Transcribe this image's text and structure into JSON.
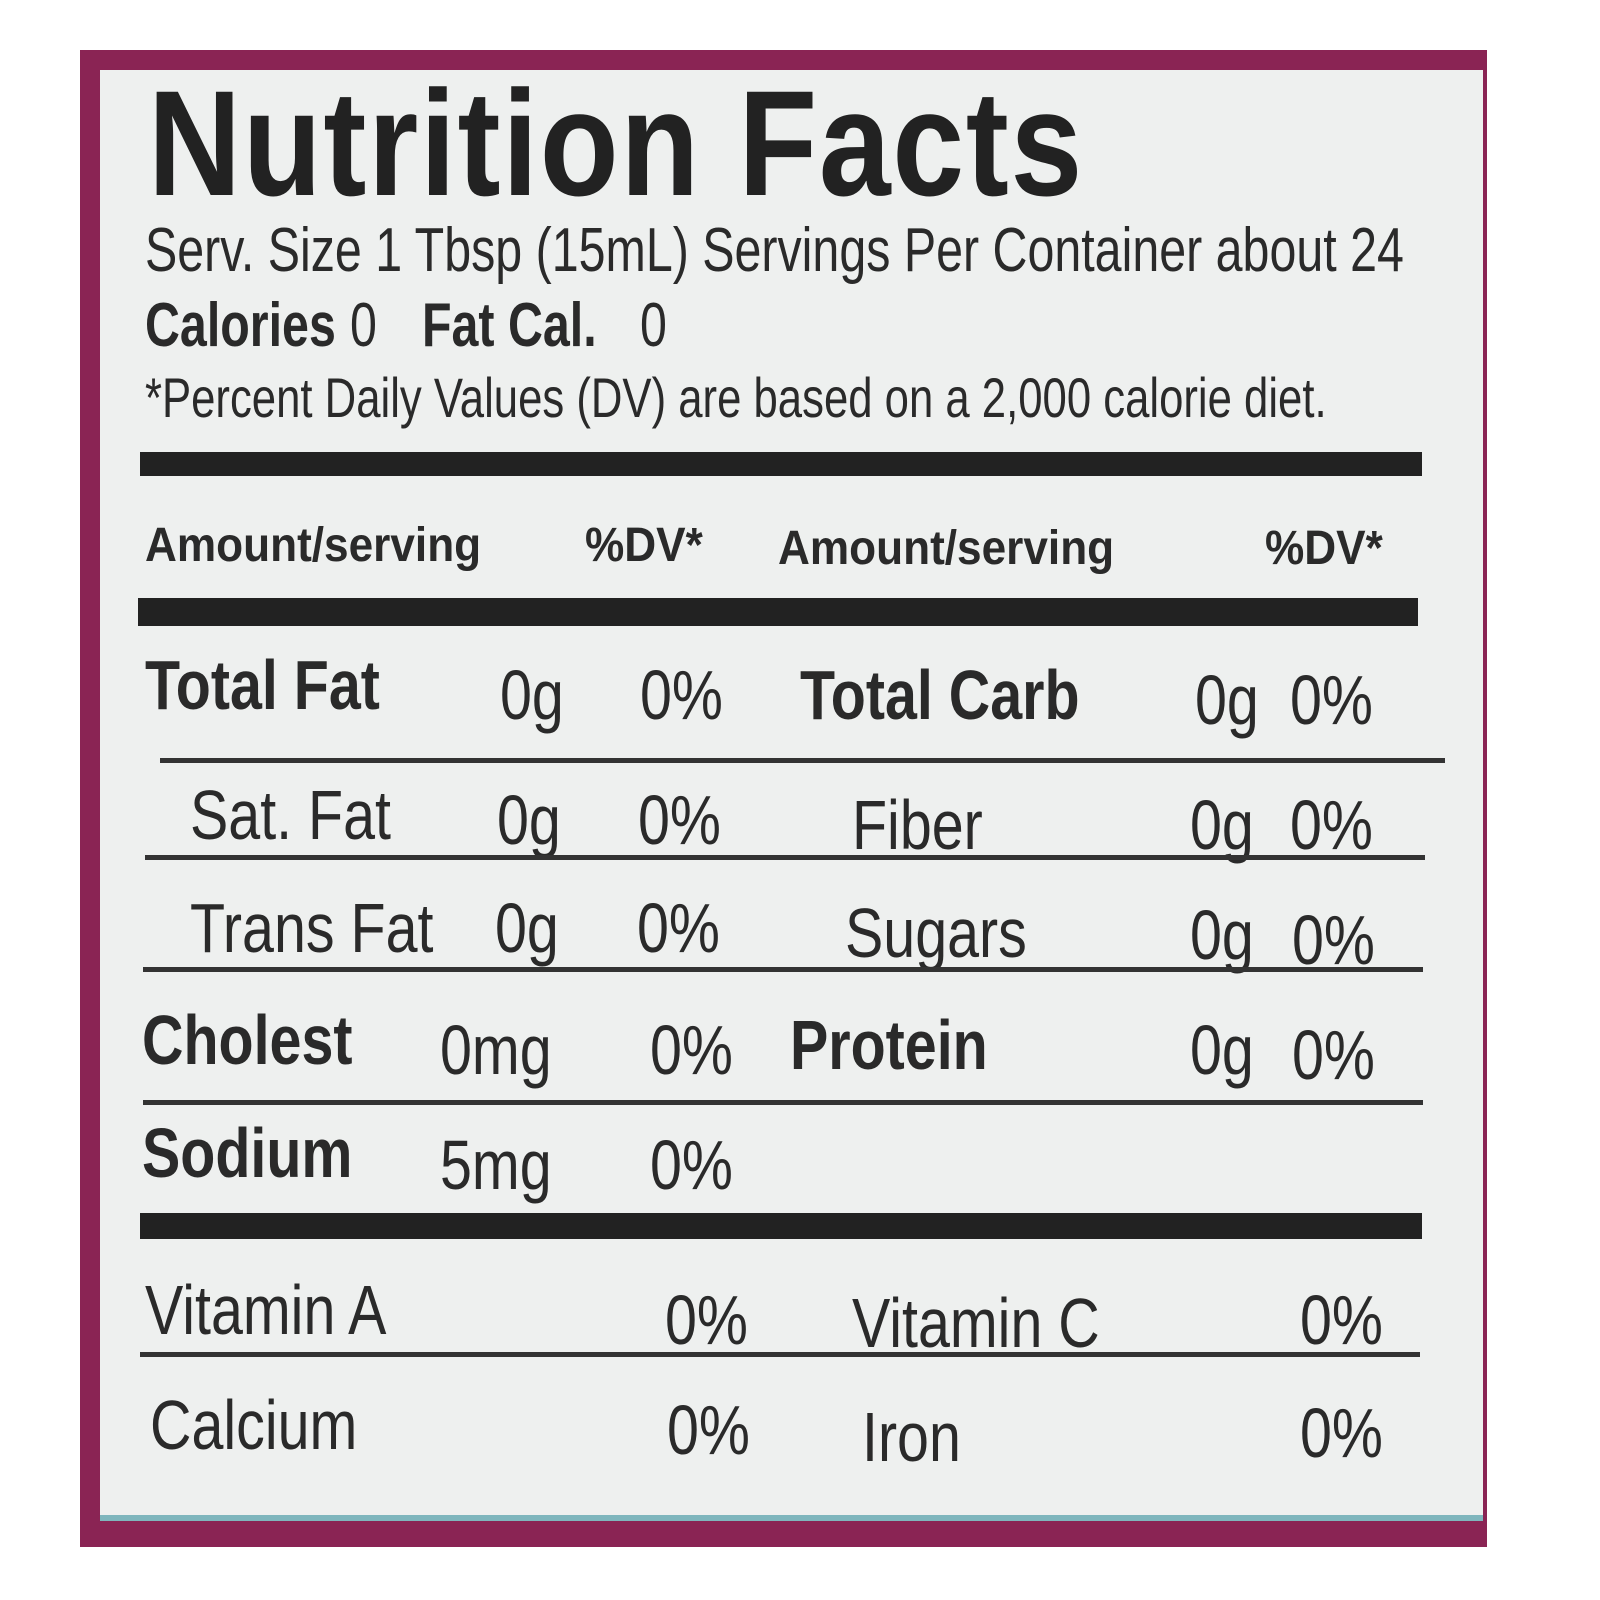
{
  "title": "Nutrition Facts",
  "serving_line": "Serv. Size 1 Tbsp (15mL)  Servings Per Container about 24",
  "calories": {
    "label": "Calories",
    "value": "0",
    "fat_label": "Fat Cal.",
    "fat_value": "0"
  },
  "dv_note": "*Percent Daily Values (DV) are based on a 2,000 calorie diet.",
  "headers": {
    "amount_left": "Amount/serving",
    "dv_left": "%DV*",
    "amount_right": "Amount/serving",
    "dv_right": "%DV*"
  },
  "left_rows": [
    {
      "name": "Total Fat",
      "amount": "0g",
      "dv": "0%"
    },
    {
      "name": "Sat. Fat",
      "amount": "0g",
      "dv": "0%"
    },
    {
      "name": "Trans Fat",
      "amount": "0g",
      "dv": "0%"
    },
    {
      "name": "Cholest",
      "amount": "0mg",
      "dv": "0%"
    },
    {
      "name": "Sodium",
      "amount": "5mg",
      "dv": "0%"
    }
  ],
  "right_rows": [
    {
      "name": "Total Carb",
      "amount": "0g",
      "dv": "0%"
    },
    {
      "name": "Fiber",
      "amount": "0g",
      "dv": "0%"
    },
    {
      "name": "Sugars",
      "amount": "0g",
      "dv": "0%"
    },
    {
      "name": "Protein",
      "amount": "0g",
      "dv": "0%"
    }
  ],
  "vitamins": [
    {
      "name": "Vitamin A",
      "dv": "0%"
    },
    {
      "name": "Vitamin C",
      "dv": "0%"
    },
    {
      "name": "Calcium",
      "dv": "0%"
    },
    {
      "name": "Iron",
      "dv": "0%"
    }
  ],
  "colors": {
    "border": "#8a2454",
    "label_bg": "#eef0ef",
    "text": "#2a2a2a"
  }
}
